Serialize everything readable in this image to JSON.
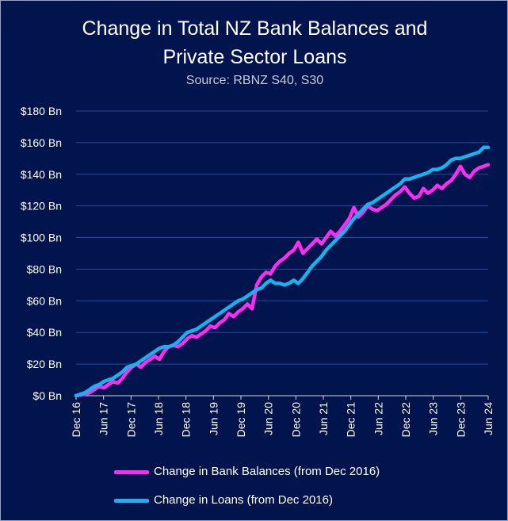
{
  "chart_data": {
    "type": "line",
    "title_line1": "Change in Total NZ Bank Balances and",
    "title_line2": "Private Sector Loans",
    "subtitle": "Source: RBNZ S40, S30",
    "y_tick_labels": [
      "$0 Bn",
      "$20 Bn",
      "$40 Bn",
      "$60 Bn",
      "$80 Bn",
      "$100 Bn",
      "$120 Bn",
      "$140 Bn",
      "$160 Bn",
      "$180 Bn"
    ],
    "ylim": [
      0,
      180
    ],
    "x_tick_labels": [
      "Dec 16",
      "Jun 17",
      "Dec 17",
      "Jun 18",
      "Dec 18",
      "Jun 19",
      "Dec 19",
      "Jun 20",
      "Dec 20",
      "Jun 21",
      "Dec 21",
      "Jun 22",
      "Dec 22",
      "Jun 23",
      "Dec 23",
      "Jun 24"
    ],
    "grid": true,
    "legend_position": "bottom",
    "series": [
      {
        "name": "Change in Bank Balances (from Dec 2016)",
        "color": "#ff2cf0",
        "values": [
          0,
          0.5,
          1,
          2,
          4,
          6,
          5,
          7,
          9,
          8,
          11,
          15,
          18,
          20,
          18,
          21,
          23,
          25,
          23,
          28,
          31,
          32,
          31,
          33,
          36,
          38,
          37,
          39,
          41,
          44,
          43,
          46,
          48,
          52,
          50,
          53,
          55,
          58,
          55,
          70,
          75,
          78,
          77,
          82,
          85,
          87,
          90,
          92,
          97,
          90,
          93,
          96,
          99,
          96,
          100,
          104,
          101,
          104,
          108,
          112,
          119,
          113,
          116,
          120,
          118,
          117,
          119,
          121,
          124,
          127,
          129,
          132,
          128,
          125,
          126,
          131,
          128,
          130,
          133,
          131,
          134,
          136,
          140,
          145,
          140,
          138,
          142,
          144,
          145,
          146
        ]
      },
      {
        "name": "Change in Loans (from Dec 2016)",
        "color": "#17b3ee",
        "values": [
          0,
          1,
          2,
          4,
          6,
          7,
          9,
          10,
          11,
          13,
          15,
          18,
          19,
          20,
          22,
          24,
          26,
          28,
          30,
          31,
          31,
          32,
          34,
          37,
          40,
          41,
          42,
          44,
          46,
          48,
          50,
          52,
          54,
          56,
          58,
          60,
          61,
          63,
          65,
          67,
          68,
          71,
          73,
          71,
          71,
          70,
          71,
          73,
          71,
          74,
          78,
          82,
          85,
          88,
          92,
          95,
          98,
          101,
          104,
          108,
          112,
          115,
          118,
          121,
          122,
          124,
          126,
          128,
          130,
          132,
          134,
          137,
          137,
          138,
          139,
          140,
          141,
          143,
          143,
          144,
          146,
          149,
          150,
          150,
          151,
          152,
          153,
          154,
          157,
          157
        ]
      }
    ]
  }
}
